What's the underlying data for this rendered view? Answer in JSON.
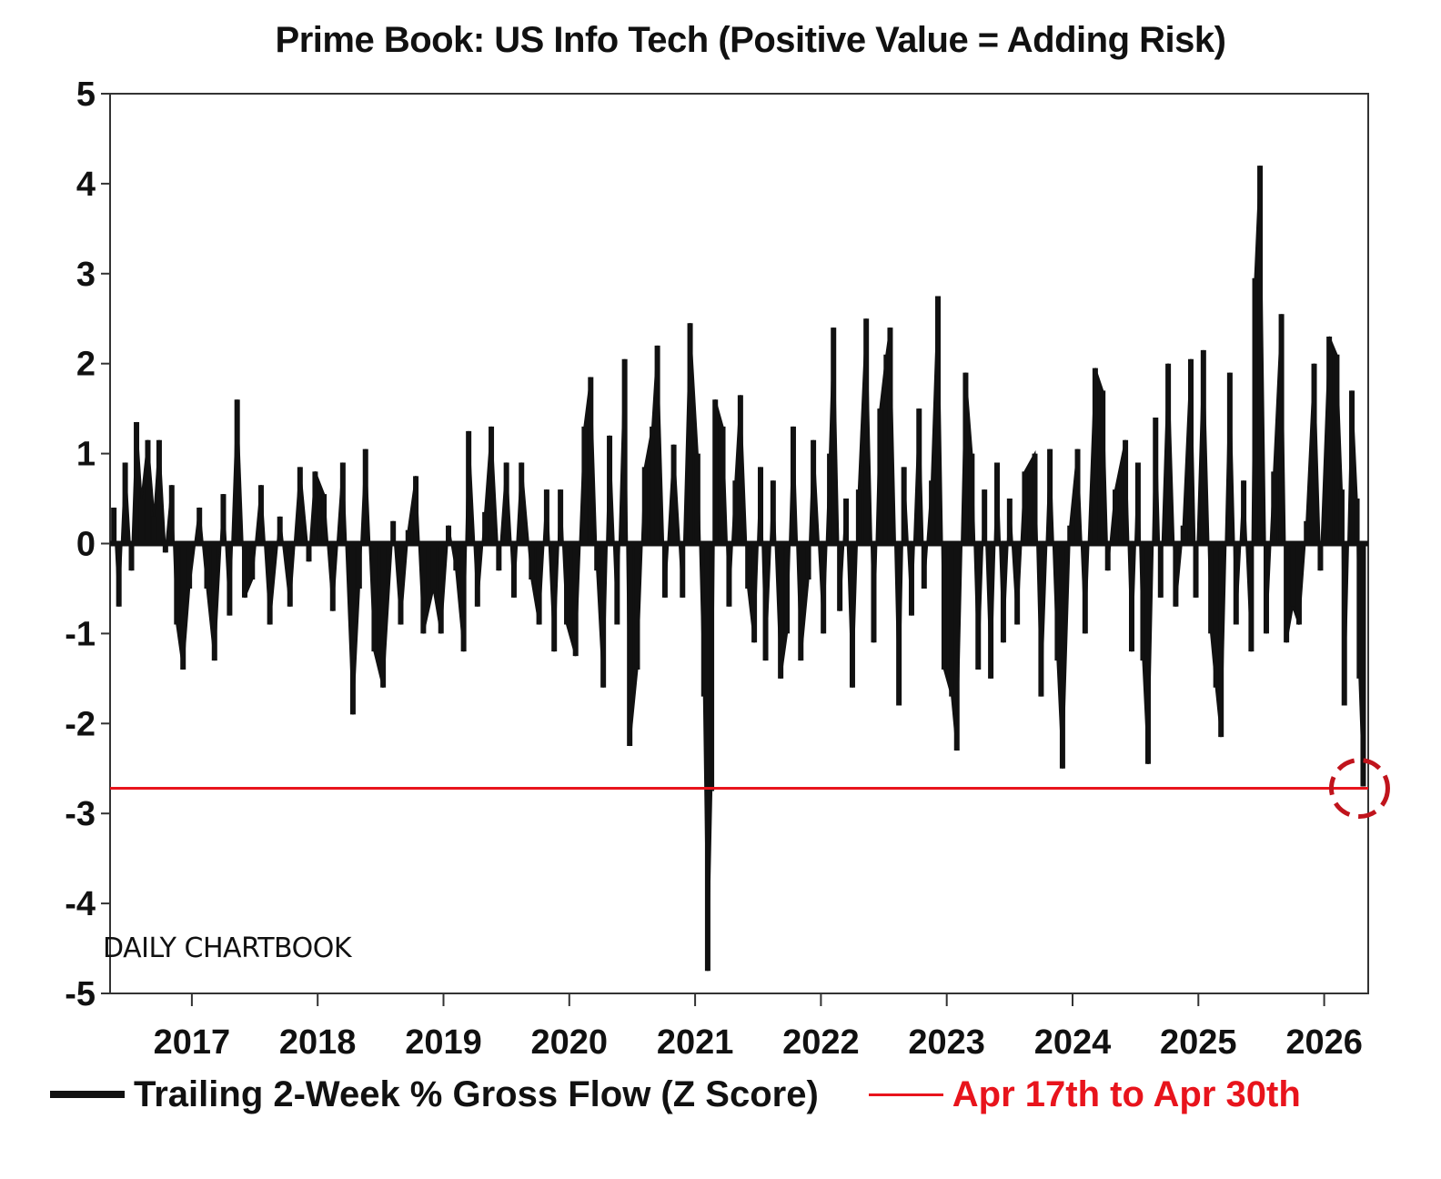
{
  "chart_data": {
    "type": "bar",
    "title": "Prime Book: US Info Tech (Positive Value = Adding Risk)",
    "ylim": [
      -5,
      5
    ],
    "yticks": [
      5,
      4,
      3,
      2,
      1,
      0,
      -1,
      -2,
      -3,
      -4,
      -5
    ],
    "yticks_labels": [
      "5",
      "4",
      "3",
      "2",
      "1",
      "0",
      "-1",
      "-2",
      "-3",
      "-4",
      "-5"
    ],
    "xlim": [
      2016.35,
      2026.35
    ],
    "xticks": [
      2017,
      2018,
      2019,
      2020,
      2021,
      2022,
      2023,
      2024,
      2025,
      2026
    ],
    "xticks_labels": [
      "2017",
      "2018",
      "2019",
      "2020",
      "2021",
      "2022",
      "2023",
      "2024",
      "2025",
      "2026"
    ],
    "grid": false,
    "legend_position": "bottom",
    "series": [
      {
        "name": "Trailing 2-Week % Gross Flow (Z Score)",
        "color": "#111111",
        "points": [
          [
            2016.38,
            0.4
          ],
          [
            2016.42,
            -0.7
          ],
          [
            2016.47,
            0.9
          ],
          [
            2016.52,
            -0.3
          ],
          [
            2016.56,
            1.35
          ],
          [
            2016.6,
            0.5
          ],
          [
            2016.65,
            1.15
          ],
          [
            2016.7,
            0.3
          ],
          [
            2016.74,
            1.15
          ],
          [
            2016.79,
            -0.1
          ],
          [
            2016.84,
            0.65
          ],
          [
            2016.88,
            -0.9
          ],
          [
            2016.93,
            -1.4
          ],
          [
            2016.98,
            -0.5
          ],
          [
            2017.06,
            0.4
          ],
          [
            2017.12,
            -0.5
          ],
          [
            2017.18,
            -1.3
          ],
          [
            2017.25,
            0.55
          ],
          [
            2017.3,
            -0.8
          ],
          [
            2017.36,
            1.6
          ],
          [
            2017.42,
            -0.6
          ],
          [
            2017.48,
            -0.4
          ],
          [
            2017.55,
            0.65
          ],
          [
            2017.62,
            -0.9
          ],
          [
            2017.7,
            0.3
          ],
          [
            2017.78,
            -0.7
          ],
          [
            2017.86,
            0.85
          ],
          [
            2017.93,
            -0.2
          ],
          [
            2017.98,
            0.8
          ],
          [
            2018.05,
            0.55
          ],
          [
            2018.12,
            -0.75
          ],
          [
            2018.2,
            0.9
          ],
          [
            2018.28,
            -1.9
          ],
          [
            2018.33,
            -0.5
          ],
          [
            2018.38,
            1.05
          ],
          [
            2018.45,
            -1.2
          ],
          [
            2018.52,
            -1.6
          ],
          [
            2018.6,
            0.25
          ],
          [
            2018.66,
            -0.9
          ],
          [
            2018.72,
            0.15
          ],
          [
            2018.78,
            0.75
          ],
          [
            2018.84,
            -1.0
          ],
          [
            2018.92,
            -0.5
          ],
          [
            2018.98,
            -1.0
          ],
          [
            2019.04,
            0.2
          ],
          [
            2019.1,
            -0.3
          ],
          [
            2019.16,
            -1.2
          ],
          [
            2019.2,
            1.25
          ],
          [
            2019.27,
            -0.7
          ],
          [
            2019.33,
            0.35
          ],
          [
            2019.38,
            1.3
          ],
          [
            2019.44,
            -0.3
          ],
          [
            2019.5,
            0.9
          ],
          [
            2019.56,
            -0.6
          ],
          [
            2019.62,
            0.9
          ],
          [
            2019.7,
            -0.4
          ],
          [
            2019.76,
            -0.9
          ],
          [
            2019.82,
            0.6
          ],
          [
            2019.88,
            -1.2
          ],
          [
            2019.93,
            0.6
          ],
          [
            2019.98,
            -0.9
          ],
          [
            2020.05,
            -1.25
          ],
          [
            2020.12,
            1.3
          ],
          [
            2020.17,
            1.85
          ],
          [
            2020.22,
            -0.3
          ],
          [
            2020.27,
            -1.6
          ],
          [
            2020.32,
            1.2
          ],
          [
            2020.38,
            -0.9
          ],
          [
            2020.44,
            2.05
          ],
          [
            2020.48,
            -2.25
          ],
          [
            2020.54,
            -1.4
          ],
          [
            2020.6,
            0.85
          ],
          [
            2020.66,
            1.3
          ],
          [
            2020.7,
            2.2
          ],
          [
            2020.76,
            -0.6
          ],
          [
            2020.83,
            1.1
          ],
          [
            2020.9,
            -0.6
          ],
          [
            2020.96,
            2.45
          ],
          [
            2021.02,
            1.0
          ],
          [
            2021.07,
            -1.7
          ],
          [
            2021.1,
            -4.75
          ],
          [
            2021.13,
            -2.75
          ],
          [
            2021.16,
            1.6
          ],
          [
            2021.22,
            1.3
          ],
          [
            2021.27,
            -0.7
          ],
          [
            2021.32,
            0.7
          ],
          [
            2021.36,
            1.65
          ],
          [
            2021.42,
            -0.5
          ],
          [
            2021.47,
            -1.1
          ],
          [
            2021.52,
            0.85
          ],
          [
            2021.56,
            -1.3
          ],
          [
            2021.62,
            0.7
          ],
          [
            2021.68,
            -1.5
          ],
          [
            2021.73,
            -1.0
          ],
          [
            2021.78,
            1.3
          ],
          [
            2021.84,
            -1.3
          ],
          [
            2021.9,
            -0.4
          ],
          [
            2021.94,
            1.15
          ],
          [
            2022.02,
            -1.0
          ],
          [
            2022.07,
            1.0
          ],
          [
            2022.1,
            2.4
          ],
          [
            2022.15,
            -0.75
          ],
          [
            2022.2,
            0.5
          ],
          [
            2022.25,
            -1.6
          ],
          [
            2022.3,
            0.6
          ],
          [
            2022.36,
            2.5
          ],
          [
            2022.42,
            -1.1
          ],
          [
            2022.47,
            1.5
          ],
          [
            2022.52,
            2.1
          ],
          [
            2022.55,
            2.4
          ],
          [
            2022.62,
            -1.8
          ],
          [
            2022.66,
            0.85
          ],
          [
            2022.72,
            -0.8
          ],
          [
            2022.78,
            1.5
          ],
          [
            2022.82,
            -0.5
          ],
          [
            2022.88,
            0.7
          ],
          [
            2022.93,
            2.75
          ],
          [
            2022.98,
            -1.4
          ],
          [
            2023.04,
            -1.7
          ],
          [
            2023.08,
            -2.3
          ],
          [
            2023.15,
            1.9
          ],
          [
            2023.2,
            1.0
          ],
          [
            2023.25,
            -1.4
          ],
          [
            2023.3,
            0.6
          ],
          [
            2023.35,
            -1.5
          ],
          [
            2023.4,
            0.9
          ],
          [
            2023.45,
            -1.1
          ],
          [
            2023.5,
            0.5
          ],
          [
            2023.56,
            -0.9
          ],
          [
            2023.62,
            0.8
          ],
          [
            2023.7,
            1.0
          ],
          [
            2023.75,
            -1.7
          ],
          [
            2023.82,
            1.05
          ],
          [
            2023.88,
            -1.3
          ],
          [
            2023.92,
            -2.5
          ],
          [
            2023.98,
            0.2
          ],
          [
            2024.04,
            1.05
          ],
          [
            2024.1,
            -1.0
          ],
          [
            2024.18,
            1.95
          ],
          [
            2024.24,
            1.7
          ],
          [
            2024.28,
            -0.3
          ],
          [
            2024.34,
            0.6
          ],
          [
            2024.42,
            1.15
          ],
          [
            2024.47,
            -1.2
          ],
          [
            2024.52,
            0.9
          ],
          [
            2024.56,
            -1.3
          ],
          [
            2024.6,
            -2.45
          ],
          [
            2024.66,
            1.4
          ],
          [
            2024.7,
            -0.6
          ],
          [
            2024.76,
            2.0
          ],
          [
            2024.82,
            -0.7
          ],
          [
            2024.88,
            0.2
          ],
          [
            2024.94,
            2.05
          ],
          [
            2024.98,
            -0.6
          ],
          [
            2025.04,
            2.15
          ],
          [
            2025.1,
            -1.0
          ],
          [
            2025.14,
            -1.6
          ],
          [
            2025.18,
            -2.15
          ],
          [
            2025.25,
            1.9
          ],
          [
            2025.3,
            -0.9
          ],
          [
            2025.36,
            0.7
          ],
          [
            2025.42,
            -1.2
          ],
          [
            2025.45,
            2.95
          ],
          [
            2025.49,
            4.2
          ],
          [
            2025.54,
            -1.0
          ],
          [
            2025.6,
            0.8
          ],
          [
            2025.66,
            2.55
          ],
          [
            2025.7,
            -1.1
          ],
          [
            2025.75,
            -0.7
          ],
          [
            2025.8,
            -0.9
          ],
          [
            2025.86,
            0.25
          ],
          [
            2025.92,
            2.0
          ],
          [
            2025.97,
            -0.3
          ],
          [
            2026.04,
            2.3
          ],
          [
            2026.1,
            2.1
          ],
          [
            2026.14,
            0.6
          ],
          [
            2026.16,
            -1.8
          ],
          [
            2026.22,
            1.7
          ],
          [
            2026.26,
            0.5
          ],
          [
            2026.28,
            -1.5
          ],
          [
            2026.31,
            -2.7
          ]
        ]
      },
      {
        "name": "Apr 17th to Apr 30th",
        "color": "#e8141c",
        "y": -2.72
      }
    ],
    "annotations": {
      "watermark": "DAILY CHARTBOOK",
      "highlight_circle_color": "#c0141c"
    }
  }
}
